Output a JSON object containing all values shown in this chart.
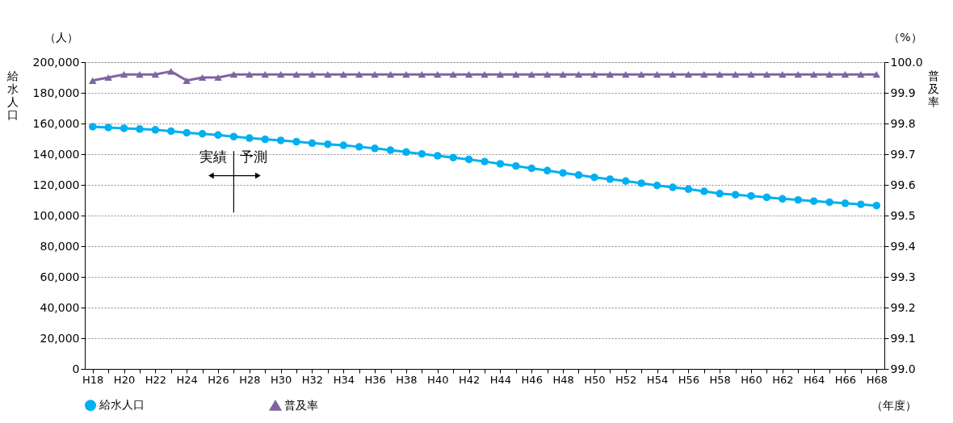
{
  "chart_data": {
    "type": "line",
    "categories": [
      "H18",
      null,
      "H20",
      null,
      "H22",
      null,
      "H24",
      null,
      "H26",
      null,
      "H28",
      null,
      "H30",
      null,
      "H32",
      null,
      "H34",
      null,
      "H36",
      null,
      "H38",
      null,
      "H40",
      null,
      "H42",
      null,
      "H44",
      null,
      "H46",
      null,
      "H48",
      null,
      "H50",
      null,
      "H52",
      null,
      "H54",
      null,
      "H56",
      null,
      "H58",
      null,
      "H60",
      null,
      "H62",
      null,
      "H64",
      null,
      "H66",
      null,
      "H68"
    ],
    "xlabel": "（年度）",
    "ylabel": "給水人口",
    "y2label": "普及率",
    "series": [
      {
        "name": "給水人口",
        "color": "#00b0f0",
        "marker": "circle",
        "values": [
          157900,
          157400,
          156900,
          156400,
          155900,
          155000,
          154000,
          153300,
          152500,
          151500,
          150500,
          149700,
          149000,
          148100,
          147200,
          146500,
          145800,
          144800,
          143800,
          142600,
          141400,
          140200,
          139000,
          137800,
          136600,
          135200,
          133700,
          132300,
          130800,
          129300,
          127800,
          126400,
          124900,
          123700,
          122500,
          121100,
          119600,
          118400,
          117200,
          115800,
          114300,
          113600,
          112800,
          111900,
          110900,
          110200,
          109400,
          108700,
          108000,
          107300,
          106500
        ]
      },
      {
        "name": "普及率",
        "color": "#8064a2",
        "marker": "triangle",
        "axis": "y2",
        "values": [
          99.94,
          99.95,
          99.96,
          99.96,
          99.96,
          99.97,
          99.94,
          99.95,
          99.95,
          99.96,
          99.96,
          99.96,
          99.96,
          99.96,
          99.96,
          99.96,
          99.96,
          99.96,
          99.96,
          99.96,
          99.96,
          99.96,
          99.96,
          99.96,
          99.96,
          99.96,
          99.96,
          99.96,
          99.96,
          99.96,
          99.96,
          99.96,
          99.96,
          99.96,
          99.96,
          99.96,
          99.96,
          99.96,
          99.96,
          99.96,
          99.96,
          99.96,
          99.96,
          99.96,
          99.96,
          99.96,
          99.96,
          99.96,
          99.96,
          99.96,
          99.96
        ]
      }
    ],
    "ylim": [
      0,
      200000
    ],
    "yticks": [
      0,
      {
        "value": 20000,
        "label": "20,000"
      },
      {
        "value": 40000,
        "label": "40,000"
      },
      {
        "value": 60000,
        "label": "60,000"
      },
      {
        "value": 80000,
        "label": "80,000"
      },
      {
        "value": 100000,
        "label": "100,000"
      },
      {
        "value": 120000,
        "label": "120,000"
      },
      {
        "value": 140000,
        "label": "140,000"
      },
      {
        "value": 160000,
        "label": "160,000"
      },
      {
        "value": 180000,
        "label": "180,000"
      },
      {
        "value": 200000,
        "label": "200,000"
      }
    ],
    "y2lim": [
      99.0,
      100.0
    ],
    "y2ticks": [
      {
        "value": 99.0,
        "label": "99.0"
      },
      99.1,
      99.2,
      99.3,
      99.4,
      99.5,
      99.6,
      99.7,
      99.8,
      99.9,
      {
        "value": 100.0,
        "label": "100.0"
      }
    ],
    "annotations": [
      "（人）",
      "（%）",
      "実績",
      "予測"
    ],
    "grid": "y",
    "legend": "bottom",
    "line_style": "solid"
  }
}
